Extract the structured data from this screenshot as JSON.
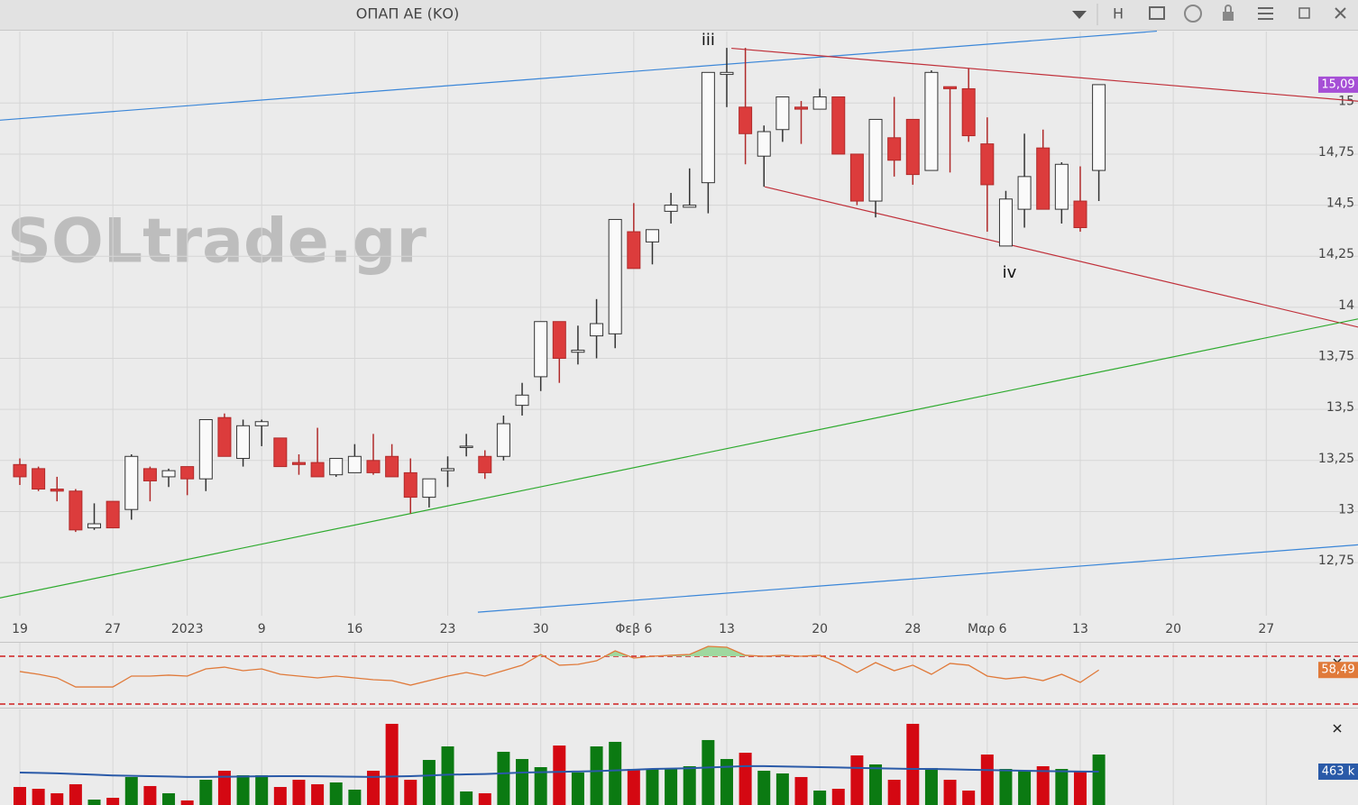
{
  "toolbar": {
    "title": "ΟΠΑΠ ΑΕ (ΚΟ)",
    "button": "H"
  },
  "watermark": "SOLtrade.gr",
  "annotations": [
    "iii",
    "iv"
  ],
  "chart_data": {
    "type": "candlestick",
    "x": [
      0,
      1,
      2,
      3,
      4,
      5,
      6,
      7,
      8,
      9,
      10,
      11,
      12,
      13,
      14,
      15,
      16,
      17,
      18,
      19,
      20,
      21,
      22,
      23,
      24,
      25,
      26,
      27,
      28,
      29,
      30,
      31,
      32,
      33,
      34,
      35,
      36,
      37,
      38,
      39,
      40,
      41,
      42,
      43,
      44,
      45,
      46,
      47,
      48,
      49,
      50,
      51,
      52,
      53,
      54,
      55,
      56,
      57,
      58
    ],
    "open": [
      13.23,
      13.21,
      13.11,
      13.1,
      12.92,
      13.05,
      13.01,
      13.21,
      13.17,
      13.22,
      13.16,
      13.46,
      13.26,
      13.42,
      13.36,
      13.24,
      13.24,
      13.18,
      13.19,
      13.25,
      13.27,
      13.19,
      13.07,
      13.2,
      13.32,
      13.27,
      13.27,
      13.52,
      13.66,
      13.93,
      13.78,
      13.86,
      13.87,
      14.37,
      14.32,
      14.47,
      14.49,
      14.61,
      15.14,
      14.98,
      14.74,
      14.87,
      14.98,
      14.97,
      15.03,
      14.75,
      14.52,
      14.83,
      14.92,
      14.67,
      15.08,
      15.07,
      14.8,
      14.3,
      14.48,
      14.78,
      14.48,
      14.52,
      14.67
    ],
    "high": [
      13.26,
      13.22,
      13.17,
      13.11,
      13.04,
      13.05,
      13.28,
      13.22,
      13.21,
      13.22,
      13.45,
      13.48,
      13.45,
      13.45,
      13.36,
      13.28,
      13.41,
      13.26,
      13.33,
      13.38,
      13.33,
      13.26,
      13.16,
      13.27,
      13.38,
      13.3,
      13.47,
      13.63,
      13.93,
      13.93,
      13.91,
      14.04,
      14.43,
      14.51,
      14.38,
      14.56,
      14.68,
      15.15,
      15.27,
      15.27,
      14.89,
      15.03,
      15.01,
      15.07,
      15.03,
      14.75,
      14.92,
      15.03,
      14.92,
      15.16,
      15.08,
      15.17,
      14.93,
      14.57,
      14.85,
      14.87,
      14.71,
      14.69,
      15.09
    ],
    "low": [
      13.13,
      13.1,
      13.05,
      12.9,
      12.91,
      12.92,
      12.96,
      13.05,
      13.12,
      13.08,
      13.1,
      13.27,
      13.22,
      13.32,
      13.22,
      13.18,
      13.17,
      13.17,
      13.19,
      13.18,
      13.17,
      12.99,
      13.02,
      13.12,
      13.27,
      13.16,
      13.25,
      13.47,
      13.59,
      13.63,
      13.72,
      13.75,
      13.8,
      14.19,
      14.21,
      14.41,
      14.49,
      14.46,
      14.98,
      14.7,
      14.59,
      14.81,
      14.8,
      14.97,
      14.75,
      14.5,
      14.44,
      14.64,
      14.6,
      14.67,
      14.66,
      14.81,
      14.37,
      14.3,
      14.39,
      14.48,
      14.41,
      14.37,
      14.52
    ],
    "close": [
      13.17,
      13.11,
      13.1,
      12.91,
      12.94,
      12.92,
      13.27,
      13.15,
      13.2,
      13.16,
      13.45,
      13.27,
      13.42,
      13.44,
      13.22,
      13.23,
      13.17,
      13.26,
      13.27,
      13.19,
      13.17,
      13.07,
      13.16,
      13.21,
      13.32,
      13.19,
      13.43,
      13.57,
      13.93,
      13.75,
      13.79,
      13.92,
      14.43,
      14.19,
      14.38,
      14.5,
      14.5,
      15.15,
      15.15,
      14.85,
      14.86,
      15.03,
      14.97,
      15.03,
      14.75,
      14.52,
      14.92,
      14.72,
      14.65,
      15.15,
      15.07,
      14.84,
      14.6,
      14.53,
      14.64,
      14.48,
      14.7,
      14.39,
      15.09
    ],
    "up_color": "#fafafa",
    "down_color": "#dc3c3c",
    "xlim": [
      -1.066,
      71.93
    ],
    "xticks": [
      {
        "value": 0,
        "label": "19"
      },
      {
        "value": 5,
        "label": "27"
      },
      {
        "value": 9,
        "label": "2023"
      },
      {
        "value": 13,
        "label": "9"
      },
      {
        "value": 18,
        "label": "16"
      },
      {
        "value": 23,
        "label": "23"
      },
      {
        "value": 28,
        "label": "30"
      },
      {
        "value": 33,
        "label": "Φεβ 6"
      },
      {
        "value": 38,
        "label": "13"
      },
      {
        "value": 43,
        "label": "20"
      },
      {
        "value": 48,
        "label": "28"
      },
      {
        "value": 52,
        "label": "Μαρ 6"
      },
      {
        "value": 57,
        "label": "13"
      },
      {
        "value": 62,
        "label": "20"
      },
      {
        "value": 67,
        "label": "27"
      }
    ],
    "ylim": [
      12.49,
      15.35
    ],
    "yticks": [
      {
        "value": 12.75,
        "label": "12,75"
      },
      13,
      {
        "value": 13.25,
        "label": "13,25"
      },
      {
        "value": 13.5,
        "label": "13,5"
      },
      {
        "value": 13.75,
        "label": "13,75"
      },
      14,
      {
        "value": 14.25,
        "label": "14,25"
      },
      {
        "value": 14.5,
        "label": "14,5"
      },
      {
        "value": 14.75,
        "label": "14,75"
      },
      15
    ],
    "grid": true,
    "last_price": {
      "value": 15.09,
      "label": "15,09",
      "color": "#a64fd6"
    },
    "trendlines": [
      {
        "color": "#3a86d8",
        "x": [
          -1.07,
          61.12
        ],
        "y": [
          14.916,
          15.352
        ]
      },
      {
        "color": "#c0303a",
        "x": [
          38.25,
          71.93
        ],
        "y": [
          15.268,
          15.009
        ]
      },
      {
        "color": "#c0303a",
        "x": [
          40.04,
          71.93
        ],
        "y": [
          14.59,
          13.903
        ]
      },
      {
        "color": "#2eaa2e",
        "x": [
          -1.07,
          71.93
        ],
        "y": [
          12.577,
          13.943
        ]
      },
      {
        "color": "#3a86d8",
        "x": [
          24.62,
          71.93
        ],
        "y": [
          12.507,
          12.837
        ]
      }
    ],
    "rsi": {
      "color": "#e07a3a",
      "fill": "#9fd89f",
      "ylim": [
        28.5,
        81.3
      ],
      "levels": [
        70,
        30
      ],
      "values": [
        57.2,
        54.9,
        51.9,
        44.3,
        44.3,
        44.3,
        53.4,
        53.4,
        54.2,
        53.4,
        59.4,
        60.9,
        57.9,
        59.4,
        54.9,
        53.4,
        51.9,
        53.4,
        51.9,
        50.4,
        49.6,
        45.8,
        49.6,
        53.4,
        56.4,
        53.4,
        57.9,
        62.5,
        71.5,
        62.5,
        63.2,
        66.2,
        74.5,
        68.5,
        70,
        70.8,
        71.5,
        78.3,
        77.5,
        70.8,
        70,
        70.8,
        70,
        70.8,
        64.7,
        56.4,
        64.7,
        57.9,
        62.5,
        54.9,
        64,
        62.5,
        53.4,
        51.1,
        52.6,
        49.6,
        54.9,
        48.1,
        58.49
      ],
      "last": {
        "value": 58.49,
        "label": "58,49"
      }
    },
    "volume": {
      "up_color": "#0b7a12",
      "down_color": "#d40812",
      "ylim": [
        0,
        1163
      ],
      "ma_color": "#2a5aa8",
      "values": [
        250,
        225,
        163,
        288,
        75,
        100,
        388,
        263,
        163,
        63,
        350,
        475,
        413,
        413,
        250,
        350,
        288,
        313,
        213,
        475,
        1126,
        350,
        625,
        813,
        188,
        163,
        738,
        638,
        525,
        825,
        450,
        813,
        876,
        500,
        500,
        500,
        538,
        901,
        638,
        725,
        475,
        438,
        388,
        200,
        225,
        688,
        563,
        350,
        1126,
        513,
        350,
        200,
        700,
        500,
        475,
        538,
        500,
        475,
        700
      ],
      "ma": [
        450,
        445,
        440,
        430,
        420,
        410,
        405,
        400,
        395,
        390,
        390,
        392,
        395,
        398,
        400,
        400,
        398,
        395,
        392,
        390,
        395,
        400,
        410,
        420,
        425,
        430,
        440,
        450,
        455,
        460,
        465,
        470,
        480,
        490,
        500,
        505,
        510,
        520,
        530,
        540,
        540,
        535,
        530,
        525,
        520,
        515,
        510,
        505,
        500,
        500,
        495,
        490,
        485,
        480,
        475,
        470,
        468,
        465,
        463
      ],
      "last": {
        "value": 463,
        "label": "463 k"
      }
    }
  }
}
